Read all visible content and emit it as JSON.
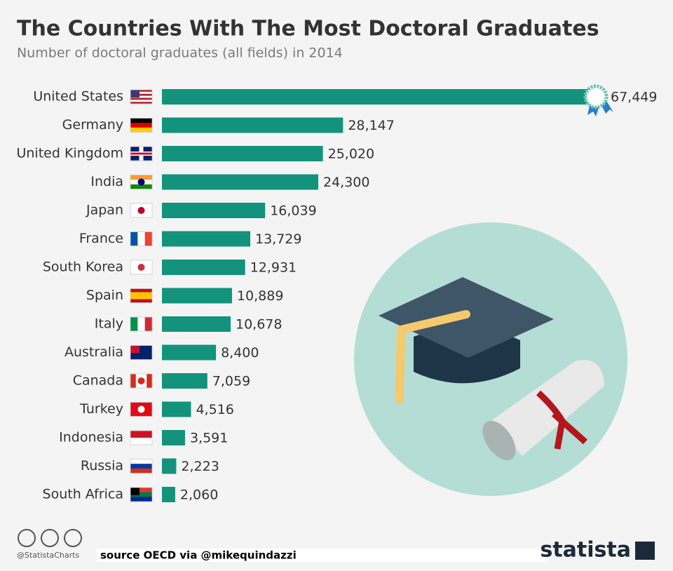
{
  "chart_data": {
    "type": "bar",
    "orientation": "horizontal",
    "title": "The Countries With The Most Doctoral Graduates",
    "subtitle": "Number of doctoral graduates (all fields) in 2014",
    "categories": [
      "United States",
      "Germany",
      "United Kingdom",
      "India",
      "Japan",
      "France",
      "South Korea",
      "Spain",
      "Italy",
      "Australia",
      "Canada",
      "Turkey",
      "Indonesia",
      "Russia",
      "South Africa"
    ],
    "values": [
      67449,
      28147,
      25020,
      24300,
      16039,
      13729,
      12931,
      10889,
      10678,
      8400,
      7059,
      4516,
      3591,
      2223,
      2060
    ],
    "value_labels": [
      "67,449",
      "28,147",
      "25,020",
      "24,300",
      "16,039",
      "13,729",
      "12,931",
      "10,889",
      "10,678",
      "8,400",
      "7,059",
      "4,516",
      "3,591",
      "2,223",
      "2,060"
    ],
    "color": "#13937b",
    "footer": {
      "handle": "@StatistaCharts",
      "source": "source OECD via @mikequindazzi",
      "brand": "statista"
    }
  }
}
